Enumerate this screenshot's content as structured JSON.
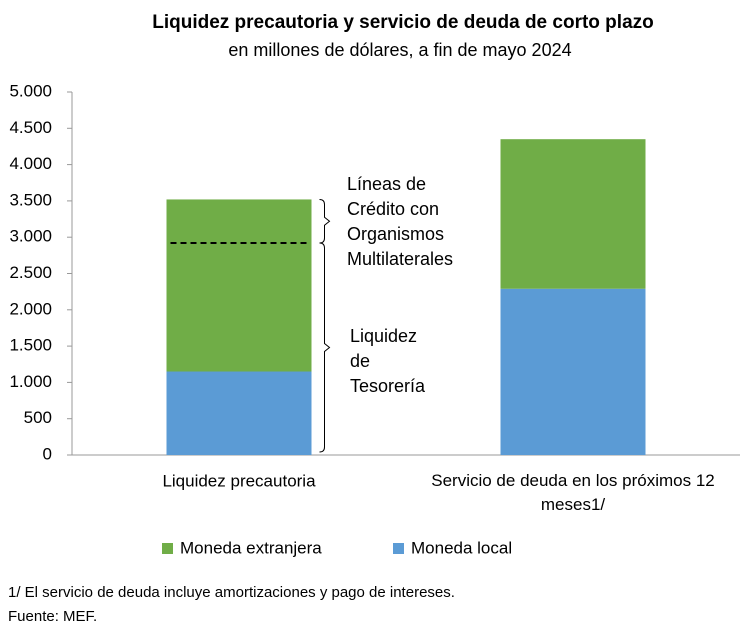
{
  "chart_data": {
    "type": "stacked_bar",
    "title": "Liquidez precautoria y servicio de deuda de corto plazo",
    "subtitle": "en millones de dólares, a fin de mayo 2024",
    "categories": [
      "Liquidez precautoria",
      "Servicio de deuda en los próximos 12 meses1/"
    ],
    "series": [
      {
        "name": "Moneda local",
        "color": "#5b9bd5",
        "values": [
          1150,
          2290
        ]
      },
      {
        "name": "Moneda extranjera",
        "color": "#70ad47",
        "values": [
          2370,
          2060
        ]
      }
    ],
    "legend_order": [
      1,
      0
    ],
    "reference_line": 2920,
    "annotations": [
      [
        "Líneas de",
        "Crédito con",
        "Organismos",
        "Multilaterales"
      ],
      [
        "Liquidez",
        "de",
        "Tesorería"
      ]
    ],
    "ylim": [
      0,
      5000
    ],
    "yticks": [
      0,
      500,
      {
        "value": 1000,
        "label": "1.000"
      },
      {
        "value": 1500,
        "label": "1.500"
      },
      {
        "value": 2000,
        "label": "2.000"
      },
      {
        "value": 2500,
        "label": "2.500"
      },
      {
        "value": 3000,
        "label": "3.000"
      },
      {
        "value": 3500,
        "label": "3.500"
      },
      {
        "value": 4000,
        "label": "4.000"
      },
      {
        "value": 4500,
        "label": "4.500"
      },
      {
        "value": 5000,
        "label": "5.000"
      }
    ],
    "notes": [
      "1/ El servicio de deuda incluye amortizaciones y pago de intereses.",
      "Fuente: MEF."
    ]
  }
}
